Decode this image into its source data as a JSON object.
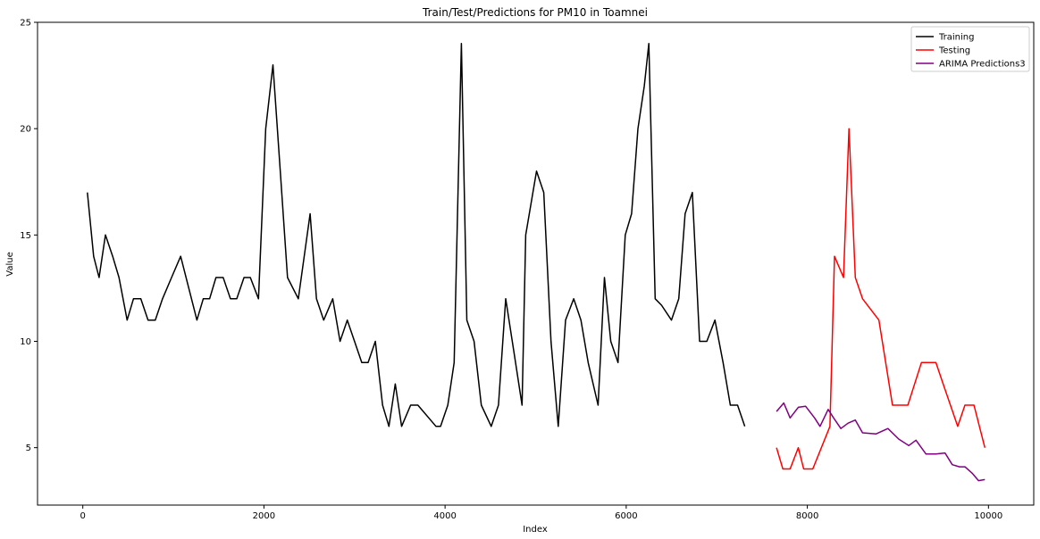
{
  "chart_data": {
    "type": "line",
    "title": "Train/Test/Predictions for PM10 in Toamnei",
    "xlabel": "Index",
    "ylabel": "Value",
    "xlim": [
      -500,
      10500
    ],
    "ylim": [
      2.3,
      25
    ],
    "xticks": [
      0,
      2000,
      4000,
      6000,
      8000,
      10000
    ],
    "yticks": [
      5,
      10,
      15,
      20,
      25
    ],
    "grid": false,
    "legend_position": "top-right",
    "series": [
      {
        "name": "Training",
        "color": "#000000",
        "x": [
          50,
          120,
          180,
          250,
          330,
          400,
          490,
          560,
          640,
          720,
          800,
          880,
          980,
          1080,
          1170,
          1260,
          1330,
          1400,
          1470,
          1550,
          1630,
          1700,
          1780,
          1850,
          1940,
          2020,
          2100,
          2180,
          2260,
          2380,
          2510,
          2580,
          2660,
          2760,
          2840,
          2920,
          3000,
          3080,
          3150,
          3230,
          3310,
          3380,
          3450,
          3520,
          3620,
          3700,
          3900,
          3950,
          4030,
          4100,
          4180,
          4240,
          4320,
          4400,
          4510,
          4590,
          4670,
          4760,
          4850,
          4890,
          5010,
          5090,
          5170,
          5250,
          5330,
          5420,
          5500,
          5580,
          5690,
          5760,
          5830,
          5910,
          5990,
          6060,
          6130,
          6200,
          6250,
          6320,
          6390,
          6500,
          6580,
          6650,
          6730,
          6810,
          6890,
          6980,
          7070,
          7150,
          7230,
          7310
        ],
        "values": [
          17,
          14,
          13,
          15,
          14,
          13,
          11,
          12,
          12,
          11,
          11,
          12,
          13,
          14,
          12.5,
          11,
          12,
          12,
          13,
          13,
          12,
          12,
          13,
          13,
          12,
          20,
          23,
          18,
          13,
          12,
          16,
          12,
          11,
          12,
          10,
          11,
          10,
          9,
          9,
          10,
          7,
          6,
          8,
          6,
          7,
          7,
          6,
          6,
          7,
          9,
          24,
          11,
          10,
          7,
          6,
          7,
          12,
          9.5,
          7,
          15,
          18,
          17,
          10,
          6,
          11,
          12,
          11,
          9,
          7,
          13,
          10,
          9,
          15,
          16,
          20,
          22,
          24,
          12,
          11.7,
          11,
          12,
          16,
          17,
          10,
          10,
          11,
          9,
          7,
          7,
          6
        ]
      },
      {
        "name": "Testing",
        "color": "#ff0000",
        "x": [
          7660,
          7730,
          7810,
          7900,
          7960,
          8060,
          8250,
          8300,
          8400,
          8460,
          8530,
          8610,
          8790,
          8940,
          9110,
          9260,
          9420,
          9500,
          9660,
          9740,
          9840,
          9960
        ],
        "values": [
          5,
          4,
          4,
          5,
          4,
          4,
          6,
          14,
          13,
          20,
          13,
          12,
          11,
          7,
          7,
          9,
          9,
          8,
          6,
          7,
          7,
          5
        ]
      },
      {
        "name": "ARIMA Predictions3",
        "color": "#800080",
        "x": [
          7660,
          7740,
          7810,
          7900,
          7980,
          8080,
          8140,
          8230,
          8290,
          8370,
          8450,
          8530,
          8610,
          8760,
          8890,
          9010,
          9120,
          9200,
          9310,
          9420,
          9520,
          9600,
          9680,
          9740,
          9820,
          9890,
          9960
        ],
        "values": [
          6.7,
          7.1,
          6.4,
          6.9,
          6.95,
          6.4,
          6.0,
          6.8,
          6.4,
          5.9,
          6.15,
          6.3,
          5.7,
          5.65,
          5.9,
          5.4,
          5.1,
          5.35,
          4.7,
          4.7,
          4.75,
          4.2,
          4.1,
          4.1,
          3.8,
          3.45,
          3.5
        ]
      }
    ]
  }
}
